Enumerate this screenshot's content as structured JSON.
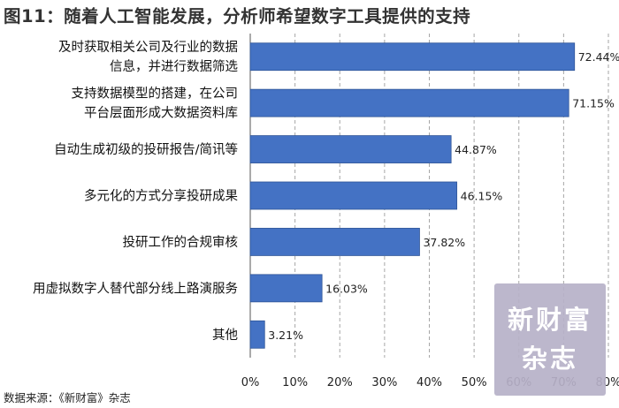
{
  "title": "图11：随着人工智能发展，分析师希望数字工具提供的支持",
  "source": "数据来源：《新财富》杂志",
  "watermark": {
    "line1": "新财富",
    "line2": "杂志"
  },
  "colors": {
    "bar": "#4472c4",
    "bar_edge": "#2f5597",
    "grid": "#a6a6a6",
    "watermark_bg": "#b7b1c8"
  },
  "chart_data": {
    "type": "bar",
    "orientation": "horizontal",
    "categories": [
      [
        "及时获取相关公司及行业的数据",
        "信息，并进行数据筛选"
      ],
      [
        "支持数据模型的搭建，在公司",
        "平台层面形成大数据资料库"
      ],
      [
        "自动生成初级的投研报告/简讯等"
      ],
      [
        "多元化的方式分享投研成果"
      ],
      [
        "投研工作的合规审核"
      ],
      [
        "用虚拟数字人替代部分线上路演服务"
      ],
      [
        "其他"
      ]
    ],
    "values": [
      72.44,
      71.15,
      44.87,
      46.15,
      37.82,
      16.03,
      3.21
    ],
    "value_labels": [
      "72.44%",
      "71.15%",
      "44.87%",
      "46.15%",
      "37.82%",
      "16.03%",
      "3.21%"
    ],
    "xticks": [
      "0%",
      "10%",
      "20%",
      "30%",
      "40%",
      "50%",
      "60%",
      "70%",
      "80%"
    ],
    "xlim": [
      0,
      80
    ],
    "grid": "vertical dashed"
  }
}
